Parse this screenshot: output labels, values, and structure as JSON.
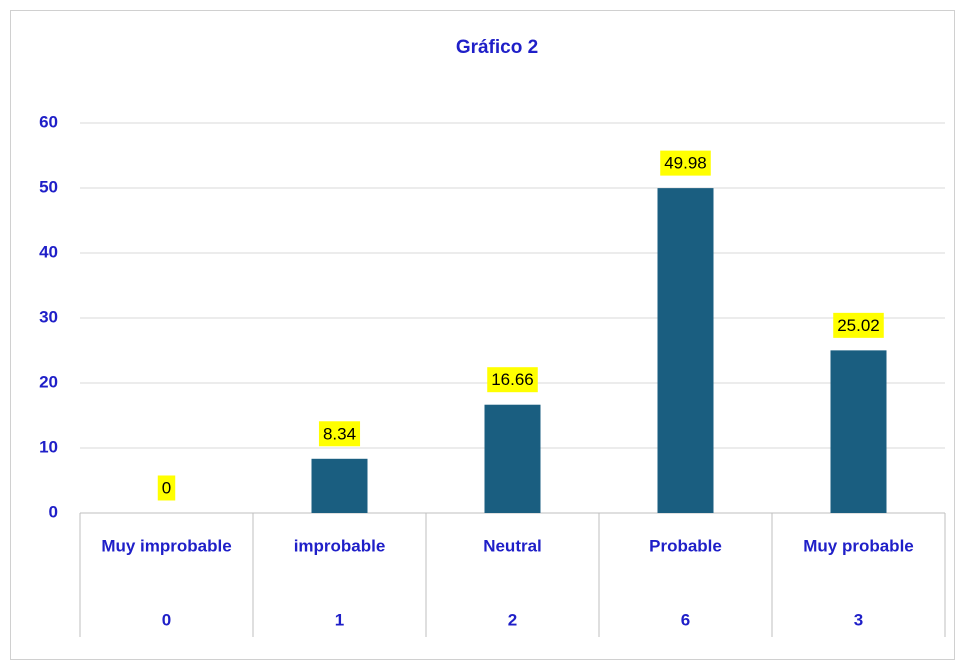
{
  "chart_data": {
    "type": "bar",
    "title": "Gráfico 2",
    "categories": [
      "Muy improbable",
      "improbable",
      "Neutral",
      "Probable",
      "Muy probable"
    ],
    "sub_categories": [
      0,
      1,
      2,
      6,
      3
    ],
    "values": [
      0,
      8.34,
      16.66,
      49.98,
      25.02
    ],
    "color": "#1a5e80",
    "label_background": "#ffff00",
    "ylim": [
      0,
      60
    ],
    "yticks": [
      0,
      10,
      20,
      30,
      40,
      50,
      60
    ],
    "grid": true
  }
}
